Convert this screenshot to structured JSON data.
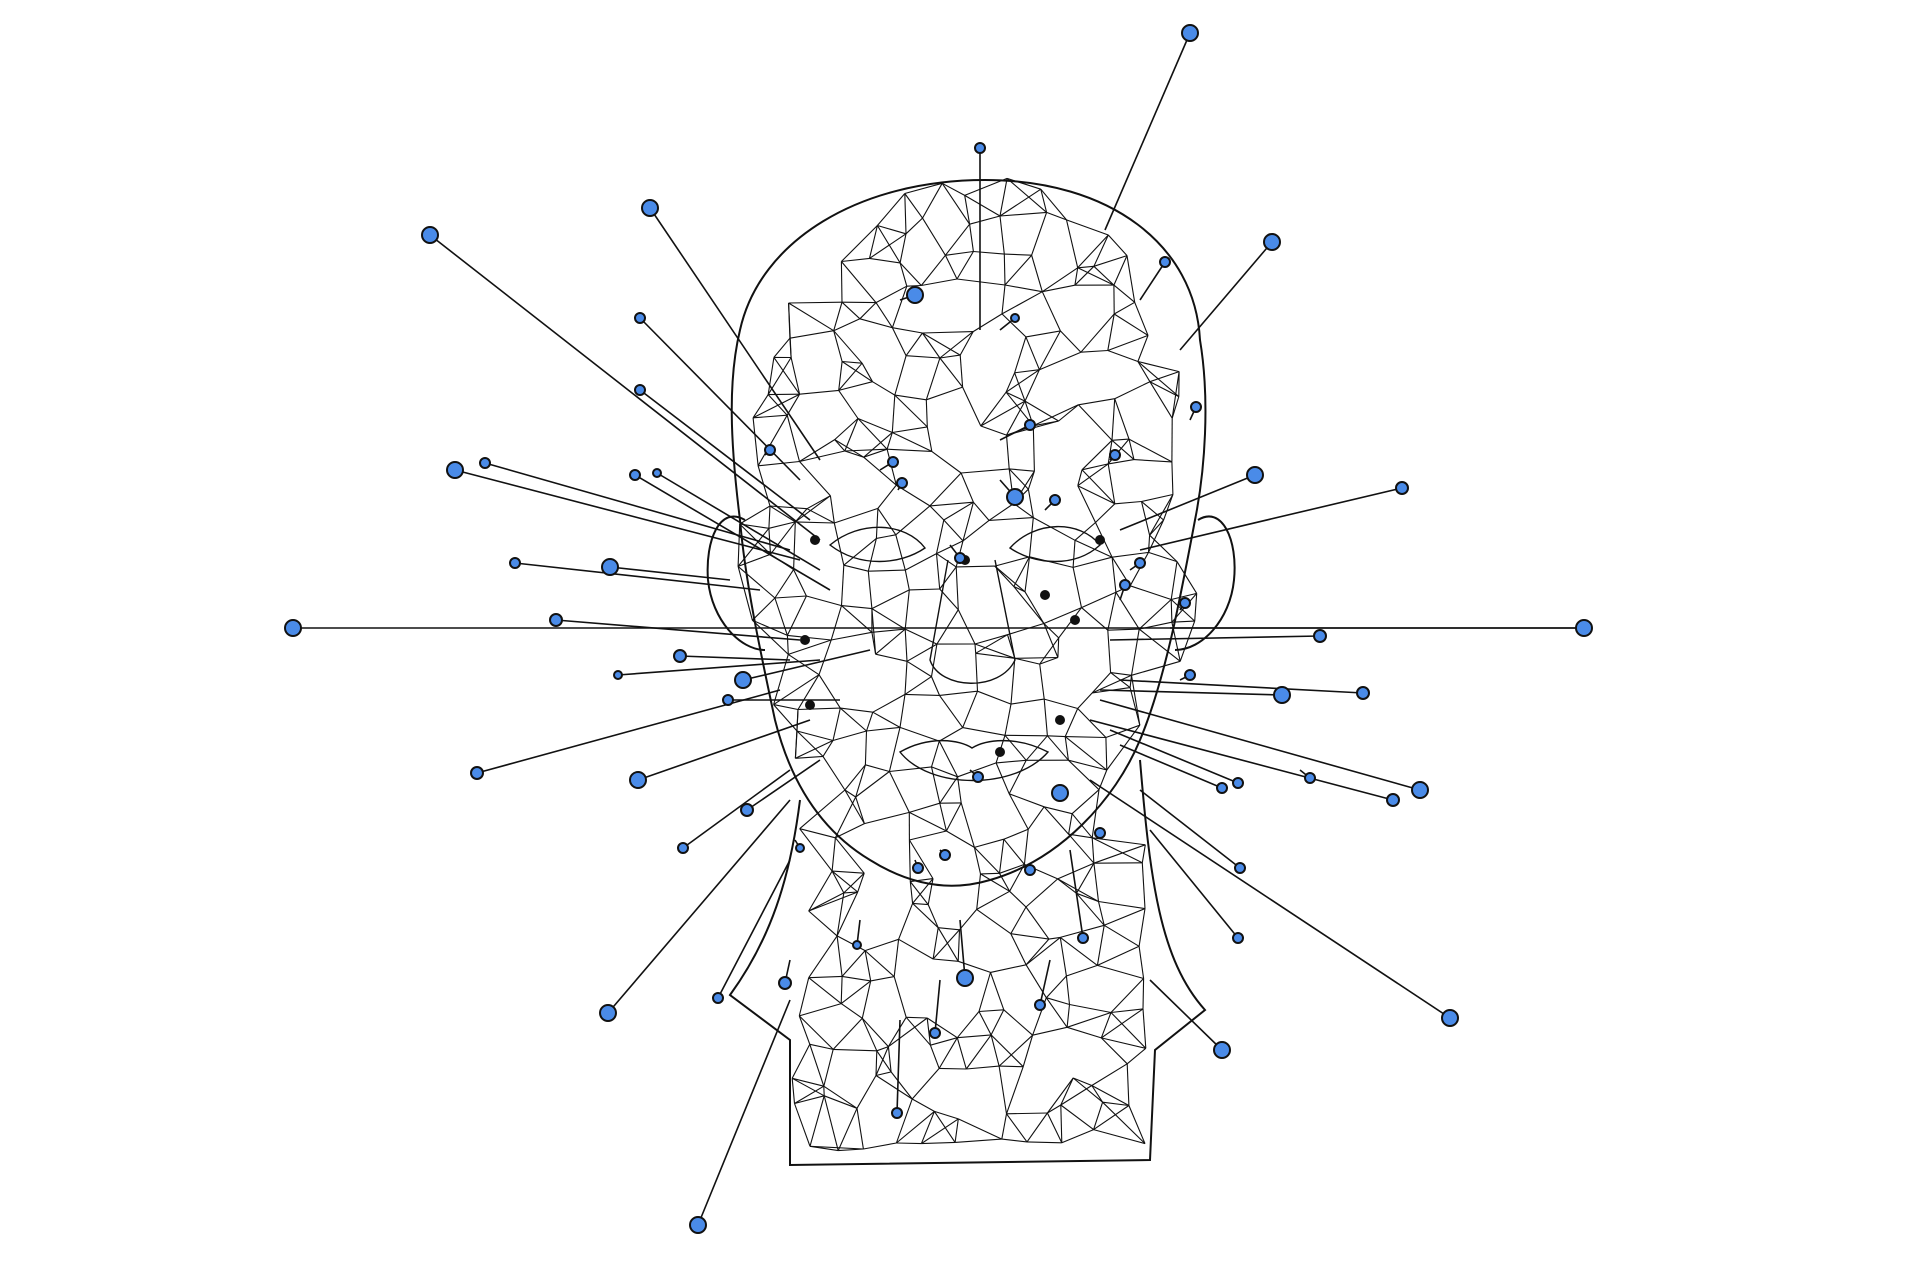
{
  "scene": {
    "subject": "wireframe-head",
    "background_color": "#ffffff",
    "line_color": "#111111",
    "node_fill_color": "#4a8be8",
    "node_stroke_color": "#111111"
  }
}
